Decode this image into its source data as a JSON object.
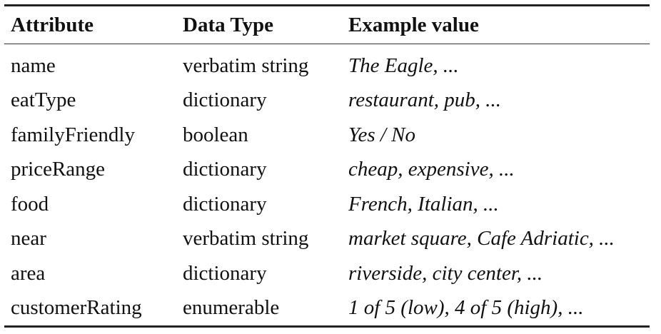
{
  "table": {
    "headers": [
      "Attribute",
      "Data Type",
      "Example value"
    ],
    "rows": [
      {
        "attribute": "name",
        "type": "verbatim string",
        "example": "The Eagle, ..."
      },
      {
        "attribute": "eatType",
        "type": "dictionary",
        "example": "restaurant, pub, ..."
      },
      {
        "attribute": "familyFriendly",
        "type": "boolean",
        "example": "Yes / No"
      },
      {
        "attribute": "priceRange",
        "type": "dictionary",
        "example": "cheap, expensive, ..."
      },
      {
        "attribute": "food",
        "type": "dictionary",
        "example": "French, Italian, ..."
      },
      {
        "attribute": "near",
        "type": "verbatim string",
        "example": "market square, Cafe Adriatic, ..."
      },
      {
        "attribute": "area",
        "type": "dictionary",
        "example": "riverside, city center, ..."
      },
      {
        "attribute": "customerRating",
        "type": "enumerable",
        "example": "1 of 5 (low), 4 of 5 (high), ..."
      }
    ]
  }
}
